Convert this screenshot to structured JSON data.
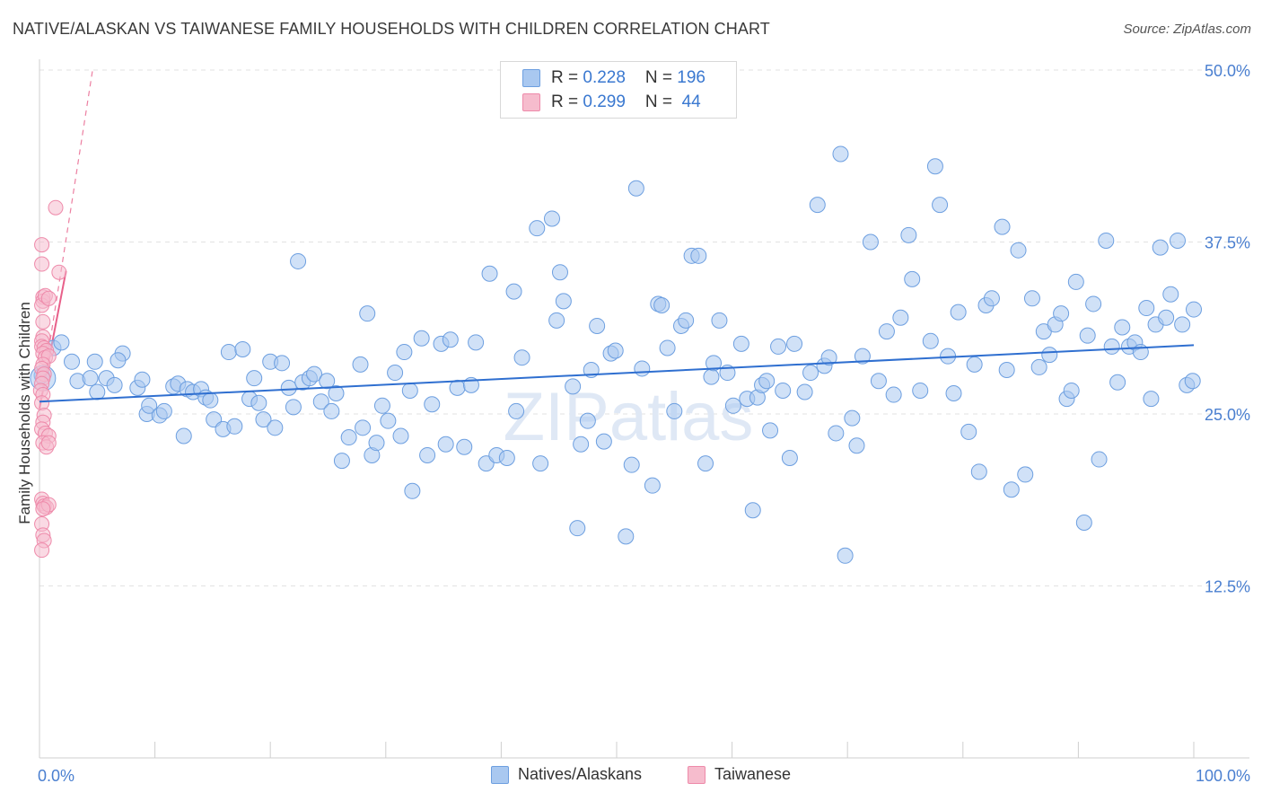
{
  "title": "NATIVE/ALASKAN VS TAIWANESE FAMILY HOUSEHOLDS WITH CHILDREN CORRELATION CHART",
  "source": "Source: ZipAtlas.com",
  "watermark": "ZIPatlas",
  "legend": {
    "r_label": "R = ",
    "n_label": "N = ",
    "series1": {
      "r": "0.228",
      "n": "196"
    },
    "series2": {
      "r": "0.299",
      "n": " 44"
    }
  },
  "bottom_legend": {
    "series1": "Natives/Alaskans",
    "series2": "Taiwanese"
  },
  "colors": {
    "blue_fill": "#a9c8f0",
    "blue_stroke": "#6d9fe0",
    "blue_line": "#2f6fd0",
    "pink_fill": "#f6bccd",
    "pink_stroke": "#ee8aaa",
    "pink_line": "#e8608a",
    "tick": "#4a7fd0"
  },
  "chart_data": {
    "type": "scatter",
    "title": "NATIVE/ALASKAN VS TAIWANESE FAMILY HOUSEHOLDS WITH CHILDREN CORRELATION CHART",
    "xlabel": "",
    "ylabel": "Family Households with Children",
    "xlim": [
      0,
      100
    ],
    "ylim": [
      0,
      50
    ],
    "x_tick_labels": [
      "0.0%",
      "100.0%"
    ],
    "y_ticks": [
      12.5,
      25.0,
      37.5,
      50.0
    ],
    "y_tick_labels": [
      "12.5%",
      "25.0%",
      "37.5%",
      "50.0%"
    ],
    "series": [
      {
        "name": "Natives/Alaskans",
        "r": 0.228,
        "n": 196,
        "trend": {
          "x": [
            0,
            100
          ],
          "y": [
            25.9,
            30.0
          ]
        },
        "points": [
          [
            0.2,
            27.8
          ],
          [
            1.2,
            29.8
          ],
          [
            1.9,
            30.2
          ],
          [
            2.8,
            28.8
          ],
          [
            3.3,
            27.4
          ],
          [
            4.4,
            27.6
          ],
          [
            5.8,
            27.6
          ],
          [
            5.0,
            26.6
          ],
          [
            4.8,
            28.8
          ],
          [
            7.2,
            29.4
          ],
          [
            6.8,
            28.9
          ],
          [
            6.5,
            27.1
          ],
          [
            8.5,
            26.9
          ],
          [
            8.9,
            27.5
          ],
          [
            9.3,
            25.0
          ],
          [
            9.5,
            25.6
          ],
          [
            10.4,
            24.9
          ],
          [
            10.8,
            25.2
          ],
          [
            11.6,
            27.0
          ],
          [
            12.0,
            27.2
          ],
          [
            12.5,
            23.4
          ],
          [
            12.8,
            26.8
          ],
          [
            13.3,
            26.6
          ],
          [
            14.0,
            26.8
          ],
          [
            14.4,
            26.2
          ],
          [
            14.8,
            26.0
          ],
          [
            15.1,
            24.6
          ],
          [
            15.9,
            23.9
          ],
          [
            16.9,
            24.1
          ],
          [
            16.4,
            29.5
          ],
          [
            17.6,
            29.7
          ],
          [
            18.2,
            26.1
          ],
          [
            18.6,
            27.6
          ],
          [
            19.0,
            25.8
          ],
          [
            19.4,
            24.6
          ],
          [
            20.0,
            28.8
          ],
          [
            20.4,
            24.0
          ],
          [
            21.0,
            28.7
          ],
          [
            21.6,
            26.9
          ],
          [
            22.0,
            25.5
          ],
          [
            22.4,
            36.1
          ],
          [
            22.8,
            27.3
          ],
          [
            23.4,
            27.6
          ],
          [
            23.8,
            27.9
          ],
          [
            24.4,
            25.9
          ],
          [
            24.9,
            27.4
          ],
          [
            25.3,
            25.2
          ],
          [
            25.7,
            26.5
          ],
          [
            26.2,
            21.6
          ],
          [
            26.8,
            23.3
          ],
          [
            27.8,
            28.6
          ],
          [
            28.0,
            24.0
          ],
          [
            28.4,
            32.3
          ],
          [
            28.8,
            22.0
          ],
          [
            29.2,
            22.9
          ],
          [
            29.7,
            25.6
          ],
          [
            30.2,
            24.5
          ],
          [
            30.8,
            28.0
          ],
          [
            31.3,
            23.4
          ],
          [
            31.6,
            29.5
          ],
          [
            32.1,
            26.7
          ],
          [
            32.3,
            19.4
          ],
          [
            33.1,
            30.5
          ],
          [
            33.6,
            22.0
          ],
          [
            34.0,
            25.7
          ],
          [
            34.8,
            30.1
          ],
          [
            35.2,
            22.8
          ],
          [
            35.6,
            30.4
          ],
          [
            36.2,
            26.9
          ],
          [
            36.8,
            22.6
          ],
          [
            37.4,
            27.1
          ],
          [
            37.8,
            30.2
          ],
          [
            38.7,
            21.4
          ],
          [
            39.0,
            35.2
          ],
          [
            39.6,
            22.0
          ],
          [
            40.5,
            21.8
          ],
          [
            41.1,
            33.9
          ],
          [
            41.3,
            25.2
          ],
          [
            41.8,
            29.1
          ],
          [
            43.1,
            38.5
          ],
          [
            43.4,
            21.4
          ],
          [
            44.4,
            39.2
          ],
          [
            44.8,
            31.8
          ],
          [
            45.1,
            35.3
          ],
          [
            45.4,
            33.2
          ],
          [
            46.2,
            27.0
          ],
          [
            46.6,
            16.7
          ],
          [
            46.9,
            22.8
          ],
          [
            47.5,
            24.5
          ],
          [
            47.8,
            28.2
          ],
          [
            48.3,
            31.4
          ],
          [
            48.9,
            23.0
          ],
          [
            49.5,
            29.4
          ],
          [
            49.9,
            29.6
          ],
          [
            50.8,
            16.1
          ],
          [
            51.3,
            21.3
          ],
          [
            51.7,
            41.4
          ],
          [
            52.2,
            28.3
          ],
          [
            53.1,
            19.8
          ],
          [
            53.6,
            33.0
          ],
          [
            53.9,
            32.9
          ],
          [
            54.4,
            29.8
          ],
          [
            55.0,
            25.2
          ],
          [
            55.6,
            31.4
          ],
          [
            56.0,
            31.8
          ],
          [
            56.5,
            36.5
          ],
          [
            57.1,
            36.5
          ],
          [
            57.7,
            21.4
          ],
          [
            58.2,
            27.7
          ],
          [
            58.4,
            28.7
          ],
          [
            58.9,
            31.8
          ],
          [
            59.6,
            28.0
          ],
          [
            60.1,
            25.6
          ],
          [
            60.8,
            30.1
          ],
          [
            61.3,
            26.1
          ],
          [
            61.8,
            18.0
          ],
          [
            62.2,
            26.2
          ],
          [
            62.6,
            27.1
          ],
          [
            63.0,
            27.4
          ],
          [
            63.3,
            23.8
          ],
          [
            64.0,
            29.9
          ],
          [
            64.4,
            26.7
          ],
          [
            65.0,
            21.8
          ],
          [
            65.4,
            30.1
          ],
          [
            66.3,
            26.6
          ],
          [
            66.8,
            28.0
          ],
          [
            67.4,
            40.2
          ],
          [
            68.0,
            28.5
          ],
          [
            68.4,
            29.1
          ],
          [
            69.0,
            23.6
          ],
          [
            69.4,
            43.9
          ],
          [
            69.8,
            14.7
          ],
          [
            70.4,
            24.7
          ],
          [
            70.8,
            22.7
          ],
          [
            71.3,
            29.2
          ],
          [
            72.0,
            37.5
          ],
          [
            72.7,
            27.4
          ],
          [
            73.4,
            31.0
          ],
          [
            74.0,
            26.4
          ],
          [
            74.6,
            32.0
          ],
          [
            75.3,
            38.0
          ],
          [
            75.6,
            34.8
          ],
          [
            76.3,
            26.7
          ],
          [
            77.2,
            30.3
          ],
          [
            77.6,
            43.0
          ],
          [
            78.0,
            40.2
          ],
          [
            78.7,
            29.2
          ],
          [
            79.2,
            26.5
          ],
          [
            79.6,
            32.4
          ],
          [
            80.5,
            23.7
          ],
          [
            81.0,
            28.6
          ],
          [
            81.4,
            20.8
          ],
          [
            82.0,
            32.9
          ],
          [
            82.5,
            33.4
          ],
          [
            83.4,
            38.6
          ],
          [
            83.8,
            28.2
          ],
          [
            84.2,
            19.5
          ],
          [
            84.8,
            36.9
          ],
          [
            85.4,
            20.6
          ],
          [
            86.0,
            33.4
          ],
          [
            86.6,
            28.4
          ],
          [
            87.0,
            31.0
          ],
          [
            87.5,
            29.3
          ],
          [
            88.0,
            31.5
          ],
          [
            88.5,
            32.3
          ],
          [
            89.0,
            26.1
          ],
          [
            89.4,
            26.7
          ],
          [
            89.8,
            34.6
          ],
          [
            90.5,
            17.1
          ],
          [
            90.8,
            30.7
          ],
          [
            91.3,
            33.0
          ],
          [
            91.8,
            21.7
          ],
          [
            92.4,
            37.6
          ],
          [
            92.9,
            29.9
          ],
          [
            93.4,
            27.3
          ],
          [
            93.8,
            31.3
          ],
          [
            94.4,
            29.9
          ],
          [
            94.9,
            30.2
          ],
          [
            95.4,
            29.5
          ],
          [
            95.9,
            32.7
          ],
          [
            96.3,
            26.1
          ],
          [
            96.7,
            31.5
          ],
          [
            97.1,
            37.1
          ],
          [
            97.6,
            32.0
          ],
          [
            98.0,
            33.7
          ],
          [
            98.6,
            37.6
          ],
          [
            99.0,
            31.5
          ],
          [
            99.4,
            27.1
          ],
          [
            99.9,
            27.4
          ],
          [
            100.0,
            32.6
          ]
        ]
      },
      {
        "name": "Taiwanese",
        "r": 0.299,
        "n": 44,
        "trend": {
          "x": [
            0,
            2.3
          ],
          "y": [
            25.4,
            35.4
          ]
        },
        "trend_extension": {
          "x": [
            0,
            4.6
          ],
          "y": [
            25.4,
            50.0
          ]
        },
        "points": [
          [
            0.2,
            37.3
          ],
          [
            0.2,
            35.9
          ],
          [
            0.3,
            33.5
          ],
          [
            0.3,
            33.2
          ],
          [
            0.2,
            32.9
          ],
          [
            0.5,
            33.6
          ],
          [
            0.8,
            33.4
          ],
          [
            0.3,
            31.7
          ],
          [
            0.3,
            30.6
          ],
          [
            0.2,
            30.3
          ],
          [
            0.2,
            29.9
          ],
          [
            0.4,
            29.8
          ],
          [
            0.6,
            29.6
          ],
          [
            0.3,
            29.4
          ],
          [
            0.5,
            29.1
          ],
          [
            0.8,
            29.2
          ],
          [
            0.3,
            28.6
          ],
          [
            0.2,
            28.3
          ],
          [
            0.4,
            27.9
          ],
          [
            0.3,
            27.6
          ],
          [
            0.2,
            27.2
          ],
          [
            0.1,
            26.7
          ],
          [
            0.3,
            26.4
          ],
          [
            0.2,
            25.8
          ],
          [
            0.4,
            24.9
          ],
          [
            0.3,
            24.4
          ],
          [
            0.2,
            23.9
          ],
          [
            0.5,
            23.6
          ],
          [
            0.8,
            23.4
          ],
          [
            0.3,
            22.9
          ],
          [
            0.6,
            22.6
          ],
          [
            0.8,
            22.9
          ],
          [
            0.2,
            18.8
          ],
          [
            0.3,
            18.5
          ],
          [
            0.4,
            18.3
          ],
          [
            0.6,
            18.2
          ],
          [
            0.8,
            18.4
          ],
          [
            0.3,
            18.1
          ],
          [
            0.2,
            17.0
          ],
          [
            0.3,
            16.2
          ],
          [
            0.4,
            15.8
          ],
          [
            0.2,
            15.1
          ],
          [
            1.4,
            40.0
          ],
          [
            1.7,
            35.3
          ]
        ]
      }
    ]
  }
}
